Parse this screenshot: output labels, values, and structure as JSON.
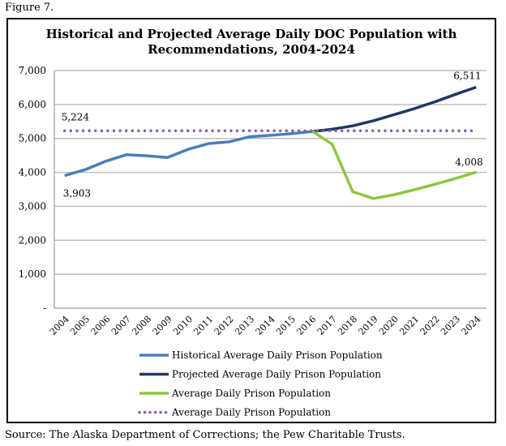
{
  "figure_label": "Figure 7.",
  "source": "Source: The Alaska Department of Corrections; the Pew Charitable Trusts.",
  "chart_data": {
    "type": "line",
    "title": "Historical and Projected Average Daily DOC Population with Recommendations, 2004-2024",
    "title_lines": [
      "Historical and Projected Average Daily DOC Population with",
      "Recommendations, 2004-2024"
    ],
    "categories": [
      "2004",
      "2005",
      "2006",
      "2007",
      "2008",
      "2009",
      "2010",
      "2011",
      "2012",
      "2013",
      "2014",
      "2015",
      "2016",
      "2017",
      "2018",
      "2019",
      "2020",
      "2021",
      "2022",
      "2023",
      "2024"
    ],
    "ylim": [
      0,
      7000
    ],
    "yticks": [
      0,
      1000,
      2000,
      3000,
      4000,
      5000,
      6000,
      7000
    ],
    "ytick_labels": [
      "-",
      "1,000",
      "2,000",
      "3,000",
      "4,000",
      "5,000",
      "6,000",
      "7,000"
    ],
    "grid": true,
    "legend_placement": "bottom",
    "series": [
      {
        "name": "Historical Average Daily Prison Population",
        "color": "#4a7ebb",
        "style": "solid",
        "values": [
          3903,
          4080,
          4330,
          4520,
          4490,
          4440,
          4680,
          4850,
          4900,
          5050,
          5090,
          5140,
          5200,
          null,
          null,
          null,
          null,
          null,
          null,
          null,
          null
        ]
      },
      {
        "name": "Projected Average Daily Prison Population",
        "color": "#1f3864",
        "style": "solid",
        "values": [
          null,
          null,
          null,
          null,
          null,
          null,
          null,
          null,
          null,
          null,
          null,
          null,
          5200,
          5270,
          5370,
          5520,
          5700,
          5880,
          6080,
          6300,
          6511
        ]
      },
      {
        "name": "Average Daily Prison Population",
        "color": "#8dc63f",
        "style": "solid",
        "values": [
          null,
          null,
          null,
          null,
          null,
          null,
          null,
          null,
          null,
          null,
          null,
          null,
          5224,
          4830,
          3430,
          3230,
          3340,
          3490,
          3650,
          3820,
          4008
        ]
      },
      {
        "name": "Average Daily Prison Population",
        "color": "#7f5fa8",
        "style": "dotted",
        "values": [
          5224,
          5224,
          5224,
          5224,
          5224,
          5224,
          5224,
          5224,
          5224,
          5224,
          5224,
          5224,
          5224,
          5224,
          5224,
          5224,
          5224,
          5224,
          5224,
          5224,
          5224
        ]
      }
    ],
    "annotations": [
      {
        "text": "3,903",
        "category": "2004",
        "value": 3903
      },
      {
        "text": "5,224",
        "category": "2004",
        "value": 5224
      },
      {
        "text": "4,008",
        "category": "2024",
        "value": 4008
      },
      {
        "text": "6,511",
        "category": "2024",
        "value": 6511
      }
    ]
  }
}
